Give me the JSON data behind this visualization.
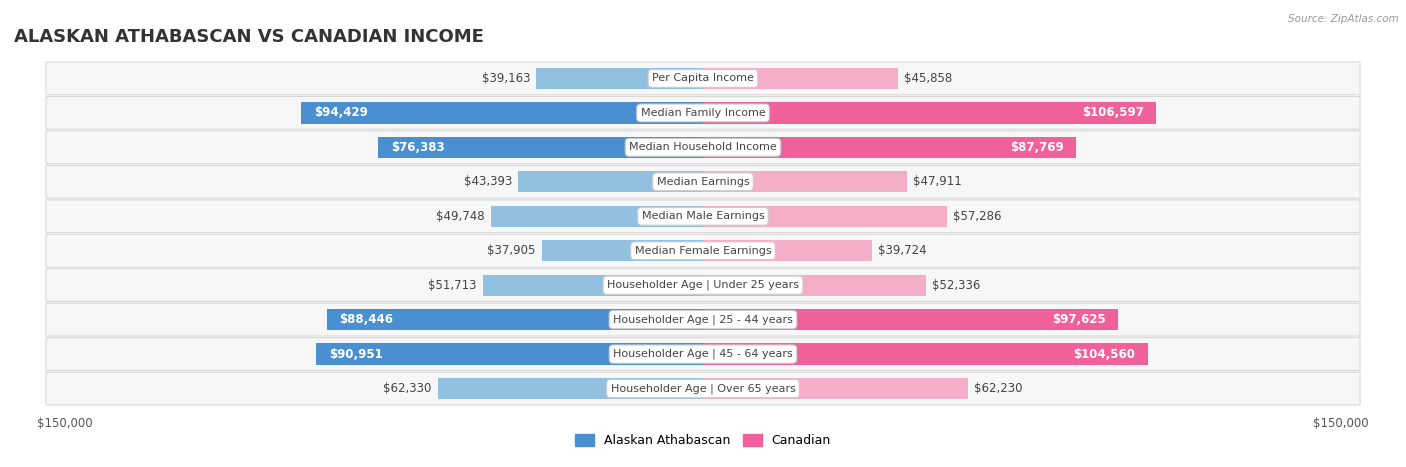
{
  "title": "ALASKAN ATHABASCAN VS CANADIAN INCOME",
  "source": "Source: ZipAtlas.com",
  "categories": [
    "Per Capita Income",
    "Median Family Income",
    "Median Household Income",
    "Median Earnings",
    "Median Male Earnings",
    "Median Female Earnings",
    "Householder Age | Under 25 years",
    "Householder Age | 25 - 44 years",
    "Householder Age | 45 - 64 years",
    "Householder Age | Over 65 years"
  ],
  "alaskan_values": [
    39163,
    94429,
    76383,
    43393,
    49748,
    37905,
    51713,
    88446,
    90951,
    62330
  ],
  "canadian_values": [
    45858,
    106597,
    87769,
    47911,
    57286,
    39724,
    52336,
    97625,
    104560,
    62230
  ],
  "alaskan_labels": [
    "$39,163",
    "$94,429",
    "$76,383",
    "$43,393",
    "$49,748",
    "$37,905",
    "$51,713",
    "$88,446",
    "$90,951",
    "$62,330"
  ],
  "canadian_labels": [
    "$45,858",
    "$106,597",
    "$87,769",
    "$47,911",
    "$57,286",
    "$39,724",
    "$52,336",
    "$97,625",
    "$104,560",
    "$62,230"
  ],
  "max_value": 150000,
  "alaskan_color_light": "#92c0e0",
  "alaskan_color_dark": "#4a90d0",
  "canadian_color_light": "#f5aec8",
  "canadian_color_dark": "#f0609a",
  "bar_height": 0.62,
  "bg_color": "#ffffff",
  "row_bg_color": "#f7f7f7",
  "label_fontsize": 8.5,
  "title_fontsize": 13,
  "category_fontsize": 8.0,
  "axis_label_fontsize": 8.5,
  "alaskan_dark_threshold": 76000,
  "canadian_dark_threshold": 87000,
  "legend_alaskan": "Alaskan Athabascan",
  "legend_canadian": "Canadian"
}
